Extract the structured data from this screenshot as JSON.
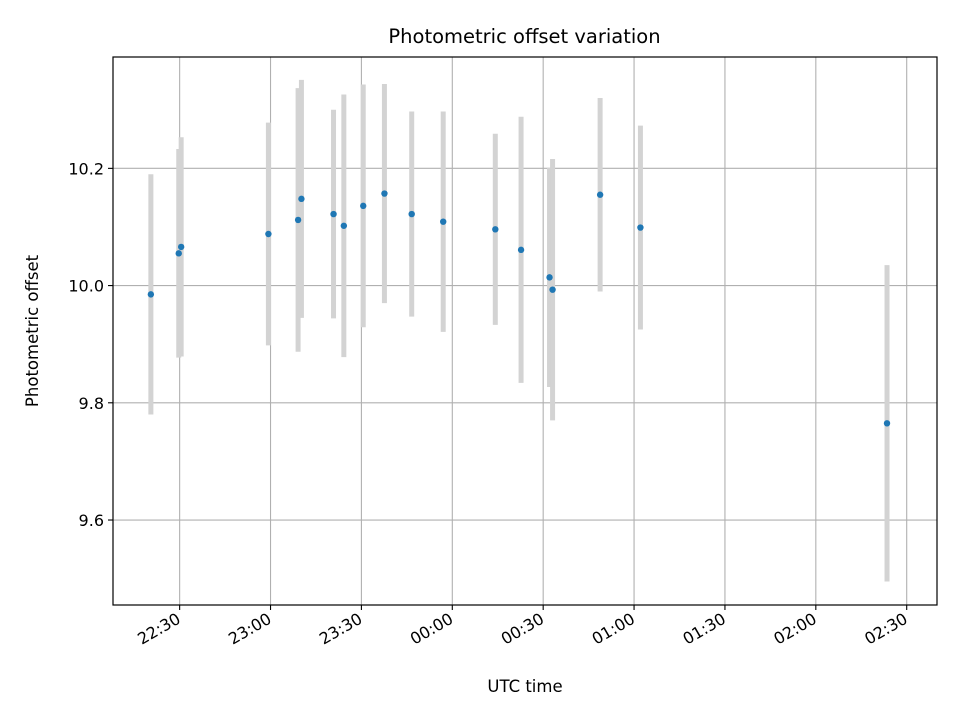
{
  "chart_data": {
    "type": "scatter",
    "title": "Photometric offset variation",
    "xlabel": "UTC time",
    "ylabel": "Photometric offset",
    "xlim": [
      "22:08",
      "02:40"
    ],
    "ylim": [
      9.455,
      10.39
    ],
    "grid": true,
    "legend": "none",
    "x_ticks": [
      "22:30",
      "23:00",
      "23:30",
      "00:00",
      "00:30",
      "01:00",
      "01:30",
      "02:00",
      "02:30"
    ],
    "y_ticks": [
      "9.6",
      "9.8",
      "10.0",
      "10.2"
    ],
    "points": [
      {
        "x": "22:20:30",
        "y": 9.985,
        "err": 0.205
      },
      {
        "x": "22:29:42",
        "y": 10.055,
        "err": 0.178
      },
      {
        "x": "22:30:30",
        "y": 10.066,
        "err": 0.187
      },
      {
        "x": "22:59:18",
        "y": 10.088,
        "err": 0.19
      },
      {
        "x": "23:09:06",
        "y": 10.112,
        "err": 0.225
      },
      {
        "x": "23:10:12",
        "y": 10.148,
        "err": 0.203
      },
      {
        "x": "23:20:48",
        "y": 10.122,
        "err": 0.178
      },
      {
        "x": "23:24:12",
        "y": 10.102,
        "err": 0.224
      },
      {
        "x": "23:30:36",
        "y": 10.136,
        "err": 0.207
      },
      {
        "x": "23:37:36",
        "y": 10.157,
        "err": 0.187
      },
      {
        "x": "23:46:36",
        "y": 10.122,
        "err": 0.175
      },
      {
        "x": "23:57:00",
        "y": 10.109,
        "err": 0.188
      },
      {
        "x": "00:14:12",
        "y": 10.096,
        "err": 0.163
      },
      {
        "x": "00:22:42",
        "y": 10.061,
        "err": 0.227
      },
      {
        "x": "00:32:06",
        "y": 10.014,
        "err": 0.187
      },
      {
        "x": "00:33:06",
        "y": 9.993,
        "err": 0.223
      },
      {
        "x": "00:48:48",
        "y": 10.155,
        "err": 0.165
      },
      {
        "x": "01:02:06",
        "y": 10.099,
        "err": 0.174
      },
      {
        "x": "02:23:30",
        "y": 9.765,
        "err": 0.27
      }
    ],
    "colors": {
      "marker": "#1f77b4",
      "errorbar": "#d3d3d3",
      "grid": "#b0b0b0"
    }
  }
}
